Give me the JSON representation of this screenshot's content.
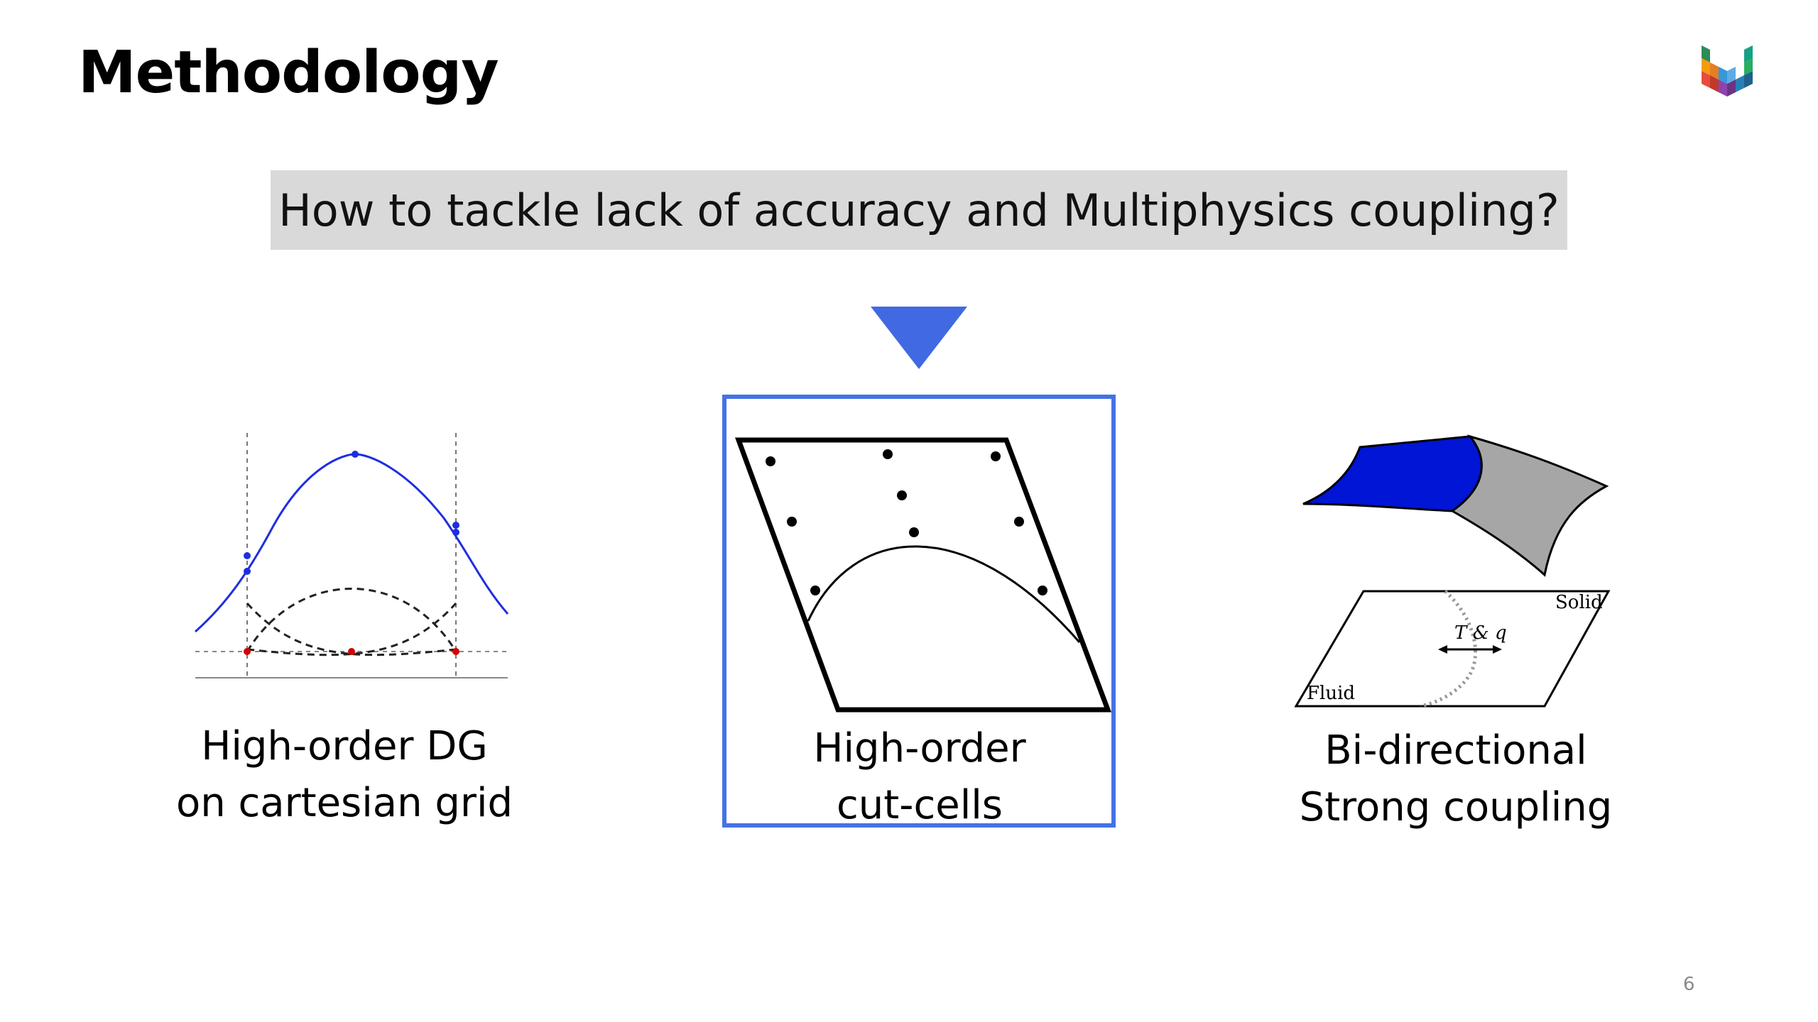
{
  "slide": {
    "title": "Methodology",
    "question": "How to tackle lack of accuracy and Multiphysics coupling?",
    "page_number": "6",
    "colors": {
      "arrow": "#4169e1",
      "highlight_border": "#4472e6",
      "question_bg": "#d9d9d9",
      "curve_blue": "#1f2ee0",
      "surface_blue": "#0015d6",
      "surface_gray": "#a6a6a6"
    }
  },
  "panels": {
    "left": {
      "caption_line1": "High-order DG",
      "caption_line2": "on cartesian grid"
    },
    "center": {
      "caption_line1": "High-order",
      "caption_line2": "cut-cells"
    },
    "right": {
      "caption_line1": "Bi-directional",
      "caption_line2": "Strong coupling",
      "label_solid": "Solid",
      "label_fluid": "Fluid",
      "label_exchange": "T & q"
    }
  },
  "icons": {
    "logo": "university-logo-icon",
    "arrow": "down-triangle-icon"
  }
}
